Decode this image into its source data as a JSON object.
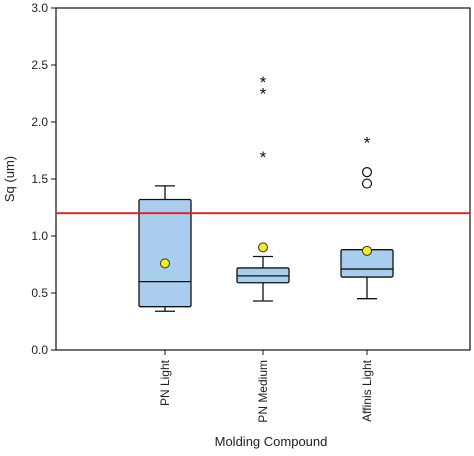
{
  "chart_data": {
    "type": "box",
    "title": "",
    "xlabel": "Molding Compound",
    "ylabel": "Sq (um)",
    "ylim": [
      0.0,
      3.0
    ],
    "yticks": [
      "0.0",
      "0.5",
      "1.0",
      "1.5",
      "2.0",
      "2.5",
      "3.0"
    ],
    "grid": false,
    "categories": [
      "PN Light",
      "PN Medium",
      "Affinis Light"
    ],
    "boxes": [
      {
        "whisker_low": 0.34,
        "q1": 0.38,
        "median": 0.6,
        "q3": 1.32,
        "whisker_high": 1.44,
        "mean": 0.76,
        "outliers_circle": [],
        "outliers_star": []
      },
      {
        "whisker_low": 0.43,
        "q1": 0.59,
        "median": 0.65,
        "q3": 0.72,
        "whisker_high": 0.82,
        "mean": 0.9,
        "outliers_circle": [],
        "outliers_star": [
          1.7,
          2.26,
          2.36
        ]
      },
      {
        "whisker_low": 0.45,
        "q1": 0.64,
        "median": 0.71,
        "q3": 0.88,
        "whisker_high": 0.88,
        "mean": 0.87,
        "outliers_circle": [
          1.46,
          1.56
        ],
        "outliers_star": [
          1.83
        ]
      }
    ],
    "reference_line": {
      "y": 1.2,
      "color": "#e02020"
    },
    "colors": {
      "box_fill": "#a9cdee",
      "box_stroke": "#111111",
      "mean_fill": "#f3ee1a"
    }
  }
}
